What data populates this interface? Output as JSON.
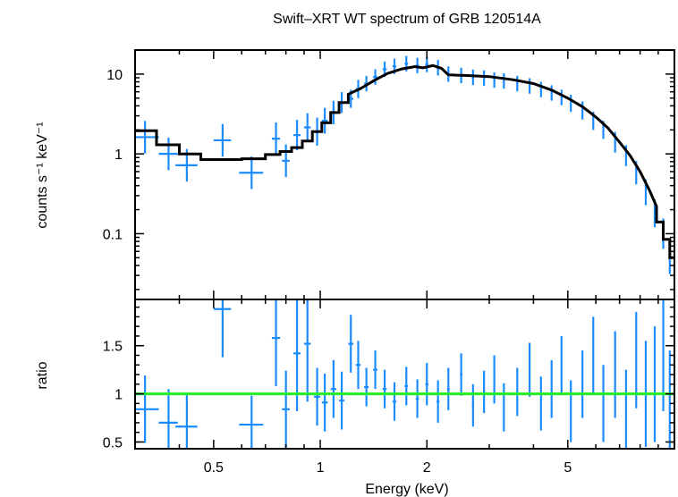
{
  "chart_data": {
    "type": "scatter",
    "title": "Swift–XRT WT spectrum of GRB 120514A",
    "xlabel": "Energy (keV)",
    "xscale": "log",
    "xlim": [
      0.3,
      10
    ],
    "x_ticks": [
      {
        "label": "0.5",
        "value": 0.5
      },
      {
        "label": "1",
        "value": 1
      },
      {
        "label": "2",
        "value": 2
      },
      {
        "label": "5",
        "value": 5
      }
    ],
    "panels": [
      {
        "name": "spectrum",
        "ylabel": "counts s⁻¹ keV⁻¹",
        "yscale": "log",
        "ylim": [
          0.015,
          20
        ],
        "y_ticks": [
          {
            "label": "0.1",
            "value": 0.1
          },
          {
            "label": "1",
            "value": 1
          },
          {
            "label": "10",
            "value": 10
          }
        ],
        "series": [
          {
            "type": "errorbar",
            "color": "#1a8cff",
            "points": [
              [
                0.32,
                0.03,
                1.62,
                0.6
              ],
              [
                0.373,
                0.023,
                1.0,
                0.6
              ],
              [
                0.42,
                0.03,
                0.72,
                0.6
              ],
              [
                0.53,
                0.03,
                1.48,
                0.6
              ],
              [
                0.64,
                0.05,
                0.58,
                0.6
              ],
              [
                0.75,
                0.02,
                1.55,
                0.6
              ],
              [
                0.8,
                0.02,
                0.82,
                0.6
              ],
              [
                0.86,
                0.02,
                1.72,
                0.55
              ],
              [
                0.92,
                0.02,
                2.15,
                0.5
              ],
              [
                0.98,
                0.02,
                1.9,
                0.5
              ],
              [
                1.03,
                0.02,
                2.6,
                0.45
              ],
              [
                1.09,
                0.02,
                3.3,
                0.4
              ],
              [
                1.15,
                0.02,
                4.4,
                0.35
              ],
              [
                1.22,
                0.02,
                4.9,
                0.3
              ],
              [
                1.28,
                0.02,
                6.5,
                0.3
              ],
              [
                1.35,
                0.02,
                7.6,
                0.25
              ],
              [
                1.43,
                0.02,
                9.2,
                0.25
              ],
              [
                1.52,
                0.02,
                11.5,
                0.25
              ],
              [
                1.62,
                0.02,
                12.5,
                0.25
              ],
              [
                1.75,
                0.02,
                13.5,
                0.25
              ],
              [
                1.88,
                0.02,
                12.8,
                0.25
              ],
              [
                2.0,
                0.02,
                13.2,
                0.25
              ],
              [
                2.15,
                0.02,
                12.0,
                0.25
              ],
              [
                2.3,
                0.02,
                10.0,
                0.25
              ],
              [
                2.5,
                0.02,
                9.6,
                0.25
              ],
              [
                2.7,
                0.02,
                9.1,
                0.25
              ],
              [
                2.9,
                0.02,
                8.9,
                0.25
              ],
              [
                3.1,
                0.02,
                8.4,
                0.25
              ],
              [
                3.3,
                0.02,
                8.2,
                0.25
              ],
              [
                3.6,
                0.02,
                7.6,
                0.25
              ],
              [
                3.9,
                0.02,
                7.1,
                0.25
              ],
              [
                4.2,
                0.02,
                6.4,
                0.25
              ],
              [
                4.5,
                0.02,
                5.8,
                0.25
              ],
              [
                4.8,
                0.02,
                5.1,
                0.25
              ],
              [
                5.1,
                0.02,
                4.3,
                0.28
              ],
              [
                5.5,
                0.02,
                3.5,
                0.3
              ],
              [
                5.9,
                0.02,
                2.6,
                0.3
              ],
              [
                6.3,
                0.02,
                2.0,
                0.3
              ],
              [
                6.8,
                0.02,
                1.4,
                0.35
              ],
              [
                7.3,
                0.02,
                0.95,
                0.35
              ],
              [
                7.8,
                0.02,
                0.58,
                0.4
              ],
              [
                8.3,
                0.02,
                0.33,
                0.45
              ],
              [
                8.8,
                0.02,
                0.18,
                0.5
              ],
              [
                9.3,
                0.02,
                0.1,
                0.55
              ],
              [
                9.7,
                0.02,
                0.05,
                0.6
              ]
            ]
          },
          {
            "type": "step",
            "color": "#000000",
            "points": [
              [
                0.3,
                1.95
              ],
              [
                0.345,
                1.95
              ],
              [
                0.345,
                1.3
              ],
              [
                0.4,
                1.3
              ],
              [
                0.4,
                1.0
              ],
              [
                0.46,
                1.0
              ],
              [
                0.46,
                0.85
              ],
              [
                0.6,
                0.85
              ],
              [
                0.6,
                0.87
              ],
              [
                0.7,
                0.87
              ],
              [
                0.7,
                0.98
              ],
              [
                0.77,
                0.98
              ],
              [
                0.77,
                1.07
              ],
              [
                0.83,
                1.07
              ],
              [
                0.83,
                1.2
              ],
              [
                0.89,
                1.2
              ],
              [
                0.89,
                1.45
              ],
              [
                0.95,
                1.45
              ],
              [
                0.95,
                1.9
              ],
              [
                1.01,
                1.9
              ],
              [
                1.01,
                2.45
              ],
              [
                1.07,
                2.45
              ],
              [
                1.07,
                3.3
              ],
              [
                1.13,
                3.3
              ],
              [
                1.13,
                4.4
              ],
              [
                1.2,
                4.4
              ],
              [
                1.2,
                5.6
              ],
              [
                1.3,
                6.6
              ],
              [
                1.42,
                8.3
              ],
              [
                1.55,
                10.2
              ],
              [
                1.7,
                11.6
              ],
              [
                1.85,
                12.4
              ],
              [
                1.95,
                12.0
              ],
              [
                2.08,
                12.8
              ],
              [
                2.2,
                11.8
              ],
              [
                2.3,
                9.8
              ],
              [
                2.6,
                9.6
              ],
              [
                3.0,
                9.3
              ],
              [
                3.5,
                8.5
              ],
              [
                4.0,
                7.6
              ],
              [
                4.5,
                6.3
              ],
              [
                5.0,
                5.0
              ],
              [
                5.5,
                3.9
              ],
              [
                6.0,
                2.9
              ],
              [
                6.5,
                2.1
              ],
              [
                7.0,
                1.4
              ],
              [
                7.5,
                0.95
              ],
              [
                8.0,
                0.6
              ],
              [
                8.5,
                0.35
              ],
              [
                8.9,
                0.22
              ],
              [
                8.9,
                0.14
              ],
              [
                9.3,
                0.14
              ],
              [
                9.3,
                0.085
              ],
              [
                9.7,
                0.085
              ],
              [
                9.7,
                0.05
              ],
              [
                10.0,
                0.05
              ]
            ]
          }
        ]
      },
      {
        "name": "ratio",
        "ylabel": "ratio",
        "yscale": "linear",
        "ylim": [
          0.43,
          1.98
        ],
        "y_ticks": [
          {
            "label": "0.5",
            "value": 0.5
          },
          {
            "label": "1",
            "value": 1
          },
          {
            "label": "1.5",
            "value": 1.5
          }
        ],
        "reference_line": {
          "value": 1,
          "color": "#22ee22"
        },
        "series": [
          {
            "type": "errorbar",
            "color": "#1a8cff",
            "points": [
              [
                0.32,
                0.03,
                0.84,
                0.35
              ],
              [
                0.373,
                0.023,
                0.7,
                0.35
              ],
              [
                0.42,
                0.03,
                0.66,
                0.35
              ],
              [
                0.53,
                0.03,
                1.88,
                0.5
              ],
              [
                0.64,
                0.05,
                0.68,
                0.3
              ],
              [
                0.75,
                0.02,
                1.58,
                0.5
              ],
              [
                0.8,
                0.02,
                0.84,
                0.4
              ],
              [
                0.86,
                0.02,
                1.42,
                0.6
              ],
              [
                0.92,
                0.02,
                1.52,
                0.6
              ],
              [
                0.98,
                0.02,
                0.97,
                0.3
              ],
              [
                1.03,
                0.02,
                0.91,
                0.3
              ],
              [
                1.09,
                0.02,
                1.05,
                0.3
              ],
              [
                1.15,
                0.02,
                0.93,
                0.3
              ],
              [
                1.22,
                0.02,
                1.52,
                0.3
              ],
              [
                1.28,
                0.02,
                1.3,
                0.25
              ],
              [
                1.35,
                0.02,
                1.07,
                0.2
              ],
              [
                1.43,
                0.02,
                1.25,
                0.2
              ],
              [
                1.52,
                0.02,
                1.05,
                0.2
              ],
              [
                1.62,
                0.02,
                0.92,
                0.2
              ],
              [
                1.75,
                0.02,
                1.08,
                0.2
              ],
              [
                1.88,
                0.02,
                0.95,
                0.2
              ],
              [
                2.0,
                0.02,
                1.1,
                0.22
              ],
              [
                2.15,
                0.02,
                0.92,
                0.22
              ],
              [
                2.3,
                0.02,
                1.05,
                0.22
              ],
              [
                2.5,
                0.02,
                1.2,
                0.22
              ],
              [
                2.7,
                0.02,
                0.88,
                0.22
              ],
              [
                2.9,
                0.02,
                1.02,
                0.22
              ],
              [
                3.1,
                0.02,
                1.15,
                0.25
              ],
              [
                3.3,
                0.02,
                0.86,
                0.25
              ],
              [
                3.6,
                0.02,
                1.02,
                0.25
              ],
              [
                3.9,
                0.02,
                1.25,
                0.28
              ],
              [
                4.2,
                0.02,
                0.9,
                0.28
              ],
              [
                4.5,
                0.02,
                1.05,
                0.3
              ],
              [
                4.8,
                0.02,
                1.3,
                0.3
              ],
              [
                5.1,
                0.02,
                0.82,
                0.32
              ],
              [
                5.5,
                0.02,
                1.1,
                0.35
              ],
              [
                5.9,
                0.02,
                1.4,
                0.4
              ],
              [
                6.3,
                0.02,
                0.9,
                0.4
              ],
              [
                6.8,
                0.02,
                1.2,
                0.45
              ],
              [
                7.3,
                0.02,
                0.8,
                0.45
              ],
              [
                7.8,
                0.02,
                1.35,
                0.5
              ],
              [
                8.3,
                0.02,
                1.0,
                0.55
              ],
              [
                8.8,
                0.02,
                1.1,
                0.6
              ],
              [
                9.3,
                0.02,
                1.42,
                0.6
              ],
              [
                9.7,
                0.02,
                0.85,
                0.6
              ]
            ]
          }
        ]
      }
    ]
  }
}
